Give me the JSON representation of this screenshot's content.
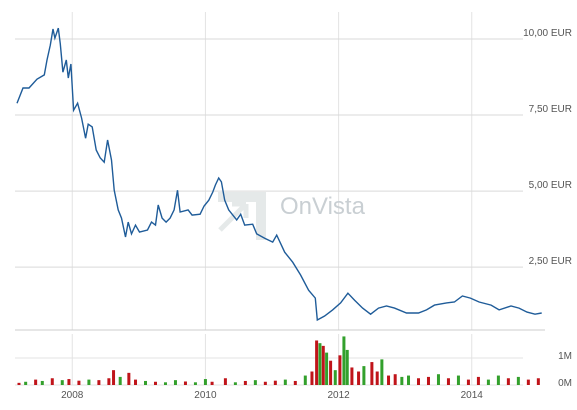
{
  "chart_data": [
    {
      "type": "line",
      "color": "#1f5c99",
      "watermark": "OnVista",
      "xlim": [
        2007.14,
        2015.1
      ],
      "ylim": [
        0.43,
        10.89
      ],
      "yticks": [
        {
          "value": 2.5,
          "label": "2,50 EUR"
        },
        {
          "value": 5,
          "label": "5,00 EUR"
        },
        {
          "value": 7.5,
          "label": "7,50 EUR"
        },
        {
          "value": 10,
          "label": "10,00 EUR"
        }
      ],
      "x": [
        2007.17,
        2007.26,
        2007.35,
        2007.47,
        2007.58,
        2007.62,
        2007.67,
        2007.71,
        2007.74,
        2007.79,
        2007.82,
        2007.86,
        2007.91,
        2007.94,
        2007.98,
        2008.02,
        2008.08,
        2008.14,
        2008.2,
        2008.24,
        2008.3,
        2008.36,
        2008.42,
        2008.48,
        2008.53,
        2008.59,
        2008.63,
        2008.69,
        2008.74,
        2008.8,
        2008.84,
        2008.89,
        2008.95,
        2009.01,
        2009.13,
        2009.19,
        2009.25,
        2009.29,
        2009.35,
        2009.41,
        2009.47,
        2009.53,
        2009.58,
        2009.62,
        2009.74,
        2009.8,
        2009.92,
        2009.98,
        2010.05,
        2010.11,
        2010.15,
        2010.2,
        2010.24,
        2010.29,
        2010.35,
        2010.47,
        2010.53,
        2010.59,
        2010.71,
        2010.77,
        2010.89,
        2011.01,
        2011.07,
        2011.19,
        2011.31,
        2011.43,
        2011.55,
        2011.65,
        2011.68,
        2011.79,
        2011.91,
        2012.03,
        2012.14,
        2012.24,
        2012.36,
        2012.48,
        2012.6,
        2012.72,
        2012.84,
        2013.02,
        2013.2,
        2013.32,
        2013.44,
        2013.62,
        2013.74,
        2013.86,
        2013.98,
        2014.11,
        2014.29,
        2014.41,
        2014.59,
        2014.71,
        2014.83,
        2014.95,
        2015.05
      ],
      "values": [
        7.89,
        8.39,
        8.39,
        8.68,
        8.82,
        9.31,
        9.8,
        10.33,
        10.03,
        10.36,
        9.84,
        8.91,
        9.31,
        8.72,
        9.18,
        7.66,
        7.89,
        7.4,
        6.74,
        7.2,
        7.11,
        6.35,
        6.09,
        5.95,
        6.68,
        6.02,
        5.03,
        4.38,
        4.11,
        3.49,
        3.98,
        3.59,
        3.88,
        3.65,
        3.72,
        3.98,
        3.88,
        4.54,
        4.11,
        3.98,
        4.11,
        4.38,
        5.03,
        4.31,
        4.38,
        4.21,
        4.24,
        4.51,
        4.7,
        4.97,
        5.2,
        5.43,
        5.3,
        4.7,
        4.38,
        4.05,
        4.24,
        3.88,
        3.91,
        3.59,
        3.45,
        3.32,
        3.55,
        2.99,
        2.66,
        2.24,
        1.74,
        1.48,
        0.76,
        0.89,
        1.09,
        1.32,
        1.64,
        1.41,
        1.15,
        0.95,
        1.15,
        1.22,
        1.15,
        0.99,
        0.99,
        1.09,
        1.25,
        1.32,
        1.35,
        1.55,
        1.48,
        1.35,
        1.25,
        1.09,
        1.22,
        1.15,
        1.02,
        0.95,
        0.99
      ]
    },
    {
      "type": "bar",
      "xlim": [
        2007.14,
        2015.1
      ],
      "ylim": [
        0,
        1890000
      ],
      "xticks": [
        2008,
        2010,
        2012,
        2014
      ],
      "yticks": [
        {
          "value": 0,
          "label": "0M"
        },
        {
          "value": 1000000,
          "label": "1M"
        }
      ],
      "x": [
        2007.2,
        2007.3,
        2007.45,
        2007.55,
        2007.7,
        2007.85,
        2007.95,
        2008.1,
        2008.25,
        2008.4,
        2008.55,
        2008.62,
        2008.72,
        2008.85,
        2008.95,
        2009.1,
        2009.25,
        2009.4,
        2009.55,
        2009.7,
        2009.85,
        2010.0,
        2010.1,
        2010.3,
        2010.45,
        2010.6,
        2010.75,
        2010.9,
        2011.05,
        2011.2,
        2011.35,
        2011.5,
        2011.6,
        2011.67,
        2011.72,
        2011.77,
        2011.82,
        2011.88,
        2011.95,
        2012.02,
        2012.08,
        2012.13,
        2012.2,
        2012.3,
        2012.38,
        2012.5,
        2012.58,
        2012.65,
        2012.75,
        2012.85,
        2012.95,
        2013.05,
        2013.2,
        2013.35,
        2013.5,
        2013.65,
        2013.8,
        2013.95,
        2014.1,
        2014.25,
        2014.4,
        2014.55,
        2014.7,
        2014.85,
        2015.0
      ],
      "values": [
        80000,
        120000,
        200000,
        150000,
        250000,
        180000,
        220000,
        160000,
        200000,
        180000,
        250000,
        550000,
        300000,
        450000,
        200000,
        150000,
        120000,
        100000,
        180000,
        130000,
        100000,
        220000,
        120000,
        250000,
        100000,
        150000,
        180000,
        120000,
        160000,
        200000,
        150000,
        350000,
        500000,
        1650000,
        1550000,
        1450000,
        1200000,
        900000,
        550000,
        1100000,
        1800000,
        1300000,
        650000,
        500000,
        700000,
        850000,
        500000,
        950000,
        350000,
        400000,
        300000,
        350000,
        250000,
        300000,
        400000,
        250000,
        350000,
        200000,
        300000,
        200000,
        350000,
        250000,
        300000,
        200000,
        250000
      ],
      "colors": [
        "#c0141a",
        "#33a02c",
        "#c0141a",
        "#33a02c",
        "#c0141a",
        "#33a02c",
        "#c0141a",
        "#c0141a",
        "#33a02c",
        "#c0141a",
        "#c0141a",
        "#c0141a",
        "#33a02c",
        "#c0141a",
        "#c0141a",
        "#33a02c",
        "#c0141a",
        "#33a02c",
        "#33a02c",
        "#c0141a",
        "#33a02c",
        "#33a02c",
        "#c0141a",
        "#c0141a",
        "#33a02c",
        "#c0141a",
        "#33a02c",
        "#c0141a",
        "#c0141a",
        "#33a02c",
        "#c0141a",
        "#33a02c",
        "#c0141a",
        "#c0141a",
        "#33a02c",
        "#c0141a",
        "#33a02c",
        "#c0141a",
        "#33a02c",
        "#c0141a",
        "#33a02c",
        "#33a02c",
        "#c0141a",
        "#c0141a",
        "#33a02c",
        "#c0141a",
        "#c0141a",
        "#33a02c",
        "#c0141a",
        "#c0141a",
        "#33a02c",
        "#33a02c",
        "#c0141a",
        "#c0141a",
        "#33a02c",
        "#c0141a",
        "#33a02c",
        "#c0141a",
        "#c0141a",
        "#33a02c",
        "#33a02c",
        "#c0141a",
        "#33a02c",
        "#c0141a",
        "#c0141a"
      ]
    }
  ]
}
